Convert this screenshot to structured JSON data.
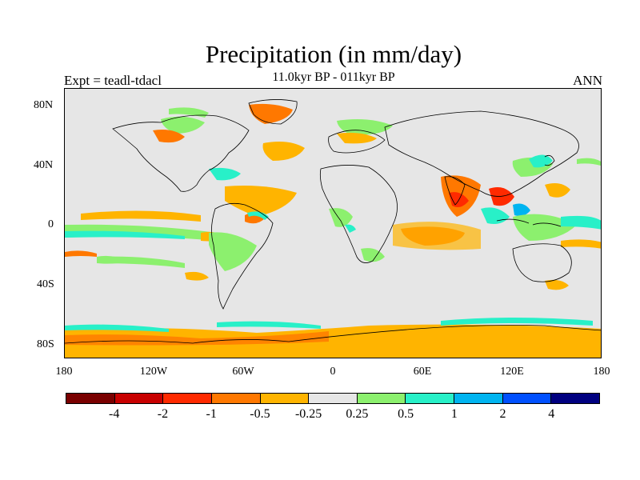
{
  "title": "Precipitation (in mm/day)",
  "subtitle": "11.0kyr BP - 011kyr BP",
  "experiment": "Expt = teadl-tdacl",
  "season": "ANN",
  "lat_labels": [
    "80N",
    "40N",
    "0",
    "40S",
    "80S"
  ],
  "lon_labels": [
    "180",
    "120W",
    "60W",
    "0",
    "60E",
    "120E",
    "180"
  ],
  "legend": {
    "colors": [
      "#7a0000",
      "#c80000",
      "#ff2a00",
      "#ff7800",
      "#ffb400",
      "#e6e6e6",
      "#8cf06e",
      "#28f0c8",
      "#00b4f0",
      "#0050ff",
      "#000080"
    ],
    "labels": [
      "-4",
      "-2",
      "-1",
      "-0.5",
      "-0.25",
      "0.25",
      "0.5",
      "1",
      "2",
      "4"
    ]
  },
  "background_color": "#e6e6e6"
}
